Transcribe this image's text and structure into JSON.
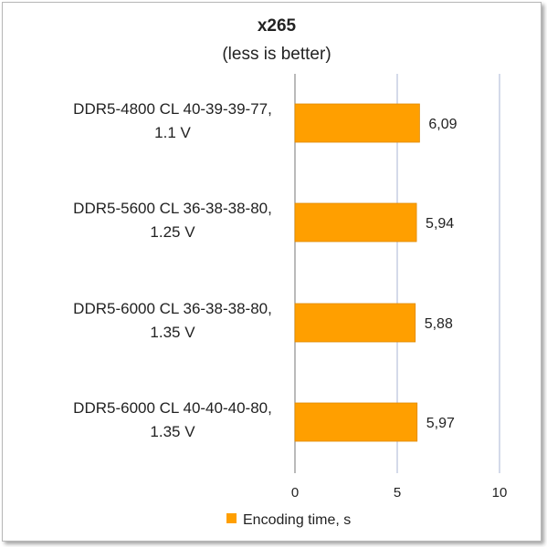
{
  "chart_data": {
    "type": "bar",
    "orientation": "horizontal",
    "title": "x265",
    "subtitle": "(less is better)",
    "categories": [
      [
        "DDR5-4800 CL 40-39-39-77,",
        "1.1 V"
      ],
      [
        "DDR5-5600 CL 36-38-38-80,",
        "1.25 V"
      ],
      [
        "DDR5-6000 CL 36-38-38-80,",
        "1.35 V"
      ],
      [
        "DDR5-6000 CL 40-40-40-80,",
        "1.35 V"
      ]
    ],
    "series": [
      {
        "name": "Encoding time, s",
        "values": [
          6.09,
          5.94,
          5.88,
          5.97
        ],
        "labels": [
          "6,09",
          "5,94",
          "5,88",
          "5,97"
        ],
        "color": "#ff9f00"
      }
    ],
    "xlim": [
      0,
      10
    ],
    "xticks": [
      0,
      5,
      10
    ],
    "grid": true,
    "gridline_color": "#aab6d6",
    "legend_position": "bottom"
  }
}
